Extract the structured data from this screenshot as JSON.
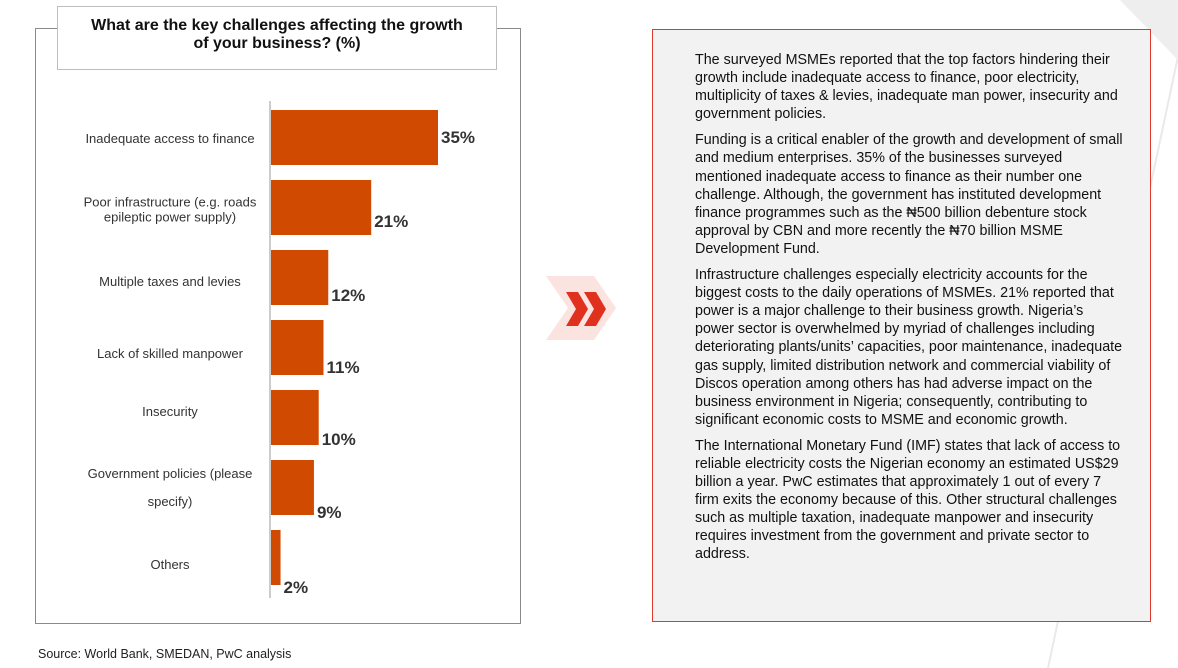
{
  "chart_data": {
    "type": "bar",
    "orientation": "horizontal",
    "title": "What are the key challenges affecting the growth of your business? (%)",
    "title_lines": [
      "What are the key challenges affecting the growth",
      "of your business? (%)"
    ],
    "categories": [
      [
        "Inadequate access to finance"
      ],
      [
        "Poor infrastructure (e.g. roads",
        "epileptic power supply)"
      ],
      [
        "Multiple taxes and levies"
      ],
      [
        "Lack of skilled manpower"
      ],
      [
        "Insecurity"
      ],
      [
        "Government policies (please",
        "specify)"
      ],
      [
        "Others"
      ]
    ],
    "values": [
      35,
      21,
      12,
      11,
      10,
      9,
      2
    ],
    "value_labels": [
      "35%",
      "21%",
      "12%",
      "11%",
      "10%",
      "9%",
      "2%"
    ],
    "xlim": [
      0,
      35
    ],
    "bar_color": "#d04a02",
    "xlabel": "",
    "ylabel": "",
    "grid": false
  },
  "source": "Source: World Bank, SMEDAN, PwC analysis",
  "colors": {
    "accent": "#d04a02",
    "panel_border": "#e03a2e",
    "chevron": "#e0301e",
    "chevron_shadow": "#fbe3df",
    "panel_bg": "#f2f2f2"
  },
  "decor": {
    "chevron_icon": "double-chevron-right-icon"
  },
  "panel": {
    "paragraphs": [
      "The surveyed MSMEs reported that the top factors hindering their growth include inadequate access to finance, poor electricity, multiplicity of taxes & levies, inadequate man power, insecurity and government policies.",
      "Funding is a critical enabler of the growth and development of small and medium enterprises. 35% of the businesses surveyed mentioned inadequate access to finance as their number one challenge. Although, the government has instituted development finance programmes such as the ₦500 billion debenture stock approval by CBN and more recently the ₦70 billion MSME  Development Fund.",
      "Infrastructure challenges especially electricity accounts for the biggest costs to the daily operations of MSMEs. 21% reported that power is a major challenge to their business growth. Nigeria’s power sector is overwhelmed by myriad of challenges including deteriorating plants/units’ capacities, poor maintenance, inadequate gas supply, limited distribution network and commercial viability of Discos operation among others has had adverse impact on the business environment in Nigeria; consequently, contributing to significant economic costs to MSME and economic growth.",
      "The International Monetary Fund (IMF) states that lack of access to reliable electricity costs the Nigerian economy an estimated US$29 billion a year. PwC estimates that approximately 1 out of every 7 firm exits the economy because of this. Other structural challenges such as multiple taxation, inadequate manpower and insecurity requires investment from the government and private sector to address."
    ]
  }
}
